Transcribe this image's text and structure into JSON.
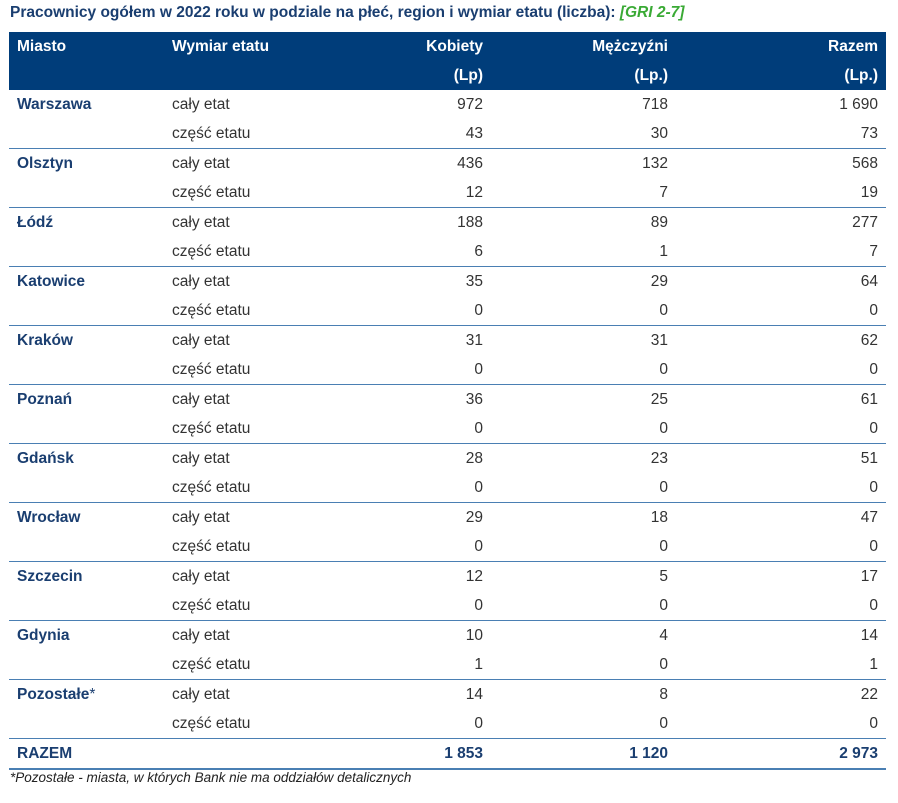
{
  "title": {
    "text": "Pracownicy ogółem w 2022 roku w podziale na płeć, region i wymiar etatu (liczba): ",
    "gri": "[GRI 2-7]"
  },
  "headers": {
    "city": "Miasto",
    "type": "Wymiar etatu",
    "women": "Kobiety",
    "women_unit": "(Lp)",
    "men": "Mężczyźni",
    "men_unit": "(Lp.)",
    "total": "Razem",
    "total_unit": "(Lp.)"
  },
  "labels": {
    "full": "cały etat",
    "part": "część etatu"
  },
  "rows": [
    {
      "city": "Warszawa",
      "full": [
        "972",
        "718",
        "1 690"
      ],
      "part": [
        "43",
        "30",
        "73"
      ]
    },
    {
      "city": "Olsztyn",
      "full": [
        "436",
        "132",
        "568"
      ],
      "part": [
        "12",
        "7",
        "19"
      ]
    },
    {
      "city": "Łódź",
      "full": [
        "188",
        "89",
        "277"
      ],
      "part": [
        "6",
        "1",
        "7"
      ]
    },
    {
      "city": "Katowice",
      "full": [
        "35",
        "29",
        "64"
      ],
      "part": [
        "0",
        "0",
        "0"
      ]
    },
    {
      "city": "Kraków",
      "full": [
        "31",
        "31",
        "62"
      ],
      "part": [
        "0",
        "0",
        "0"
      ]
    },
    {
      "city": "Poznań",
      "full": [
        "36",
        "25",
        "61"
      ],
      "part": [
        "0",
        "0",
        "0"
      ]
    },
    {
      "city": "Gdańsk",
      "full": [
        "28",
        "23",
        "51"
      ],
      "part": [
        "0",
        "0",
        "0"
      ]
    },
    {
      "city": "Wrocław",
      "full": [
        "29",
        "18",
        "47"
      ],
      "part": [
        "0",
        "0",
        "0"
      ]
    },
    {
      "city": "Szczecin",
      "full": [
        "12",
        "5",
        "17"
      ],
      "part": [
        "0",
        "0",
        "0"
      ]
    },
    {
      "city": "Gdynia",
      "full": [
        "10",
        "4",
        "14"
      ],
      "part": [
        "1",
        "0",
        "1"
      ]
    },
    {
      "city": "Pozostałe",
      "mark": "*",
      "full": [
        "14",
        "8",
        "22"
      ],
      "part": [
        "0",
        "0",
        "0"
      ]
    }
  ],
  "total": {
    "label": "RAZEM",
    "values": [
      "1 853",
      "1 120",
      "2 973"
    ]
  },
  "footnote": "*Pozostałe - miasta, w których Bank nie ma oddziałów detalicznych"
}
